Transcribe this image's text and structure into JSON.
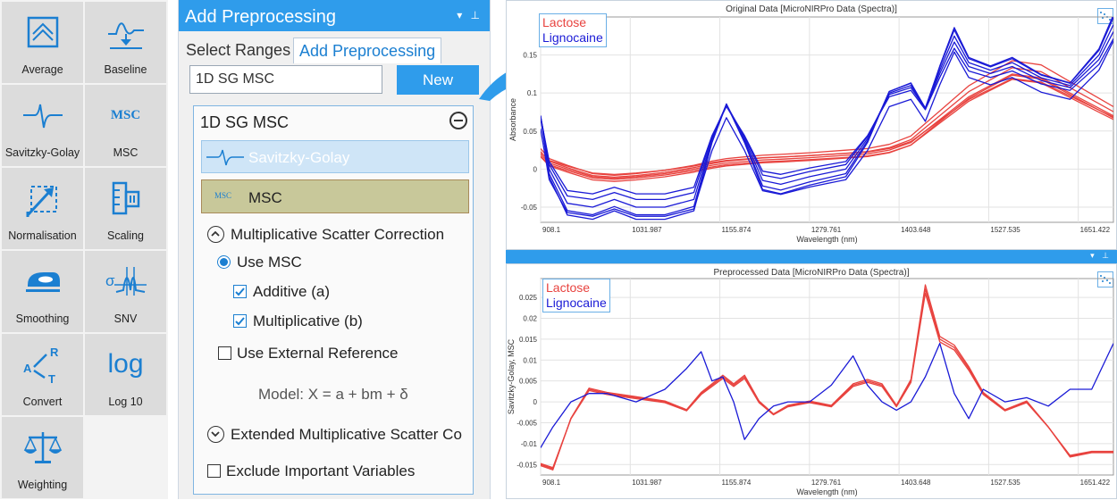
{
  "palette": {
    "items": [
      {
        "label": "Average",
        "icon": "average-icon"
      },
      {
        "label": "Baseline",
        "icon": "baseline-icon"
      },
      {
        "label": "Savitzky-Golay",
        "icon": "savitzky-golay-icon"
      },
      {
        "label": "MSC",
        "icon": "msc-icon"
      },
      {
        "label": "Normalisation",
        "icon": "normalisation-icon"
      },
      {
        "label": "Scaling",
        "icon": "scaling-icon"
      },
      {
        "label": "Smoothing",
        "icon": "smoothing-icon"
      },
      {
        "label": "SNV",
        "icon": "snv-icon"
      },
      {
        "label": "Convert",
        "icon": "convert-icon"
      },
      {
        "label": "Log 10",
        "icon": "log-icon"
      },
      {
        "label": "Weighting",
        "icon": "weighting-icon"
      }
    ],
    "msc_icon_text": "MSC",
    "log_icon_text": "log",
    "convert_letters": [
      "R",
      "A",
      "T"
    ],
    "snv_icon_text": "σ"
  },
  "panel": {
    "title": "Add Preprocessing",
    "tabs": {
      "select": "Select Ranges",
      "add": "Add Preprocessing"
    },
    "name_value": "1D SG MSC",
    "new_label": "New",
    "group_title": "1D SG MSC",
    "steps": {
      "sg": "Savitzky-Golay",
      "msc": "MSC",
      "msc_icon": "MSC"
    },
    "msc_section": "Multiplicative Scatter Correction",
    "use_msc": "Use MSC",
    "additive": "Additive (a)",
    "multiplicative": "Multiplicative (b)",
    "external_ref": "Use External Reference",
    "model": "Model: X = a + bm + δ",
    "emsc_section": "Extended Multiplicative Scatter Co",
    "exclude": "Exclude Important Variables",
    "state": {
      "use_msc": true,
      "additive": true,
      "multiplicative": true,
      "external_ref": false,
      "exclude": false
    }
  },
  "colors": {
    "accent": "#2f9ceb",
    "lactose": "#e8433f",
    "lignocaine": "#1a1ad6"
  },
  "chart_data": [
    {
      "type": "line",
      "title": "Original Data [MicroNIRPro Data (Spectra)]",
      "xlabel": "Wavelength (nm)",
      "ylabel": "Absorbance",
      "x_ticks": [
        "908.1",
        "1031.987",
        "1155.874",
        "1279.761",
        "1403.648",
        "1527.535",
        "1651.422"
      ],
      "y_ticks": [
        "-0.05",
        "0",
        "0.05",
        "0.1",
        "0.15"
      ],
      "xlim": [
        908.1,
        1700
      ],
      "ylim": [
        -0.07,
        0.2
      ],
      "grid": true,
      "legend": "top-left",
      "x": [
        908,
        920,
        945,
        980,
        1010,
        1040,
        1080,
        1120,
        1145,
        1165,
        1190,
        1215,
        1240,
        1280,
        1330,
        1360,
        1390,
        1420,
        1440,
        1460,
        1480,
        1500,
        1530,
        1560,
        1600,
        1640,
        1680,
        1700
      ],
      "series": [
        {
          "name": "Lactose",
          "values": [
            0.02,
            0.008,
            0.0,
            -0.01,
            -0.012,
            -0.01,
            -0.006,
            0.0,
            0.005,
            0.008,
            0.01,
            0.012,
            0.013,
            0.015,
            0.018,
            0.02,
            0.025,
            0.035,
            0.05,
            0.065,
            0.08,
            0.095,
            0.11,
            0.125,
            0.12,
            0.1,
            0.08,
            0.07
          ]
        },
        {
          "name": "Lignocaine",
          "values": [
            0.07,
            0.0,
            -0.045,
            -0.05,
            -0.04,
            -0.05,
            -0.05,
            -0.04,
            0.04,
            0.085,
            0.04,
            -0.015,
            -0.02,
            -0.01,
            0.0,
            0.04,
            0.1,
            0.11,
            0.08,
            0.13,
            0.175,
            0.14,
            0.13,
            0.14,
            0.12,
            0.11,
            0.15,
            0.19
          ]
        }
      ]
    },
    {
      "type": "line",
      "title": "Preprocessed Data [MicroNIRPro Data (Spectra)]",
      "xlabel": "Wavelength (nm)",
      "ylabel": "Savitzky-Golay, MSC",
      "x_ticks": [
        "908.1",
        "1031.987",
        "1155.874",
        "1279.761",
        "1403.648",
        "1527.535",
        "1651.422"
      ],
      "y_ticks": [
        "-0.015",
        "-0.01",
        "-0.005",
        "0",
        "0.005",
        "0.01",
        "0.015",
        "0.02",
        "0.025"
      ],
      "xlim": [
        908.1,
        1700
      ],
      "ylim": [
        -0.0175,
        0.0295
      ],
      "grid": true,
      "legend": "top-left",
      "x": [
        908,
        925,
        950,
        975,
        1000,
        1040,
        1080,
        1110,
        1130,
        1145,
        1160,
        1175,
        1190,
        1210,
        1230,
        1250,
        1280,
        1310,
        1340,
        1360,
        1380,
        1400,
        1420,
        1440,
        1460,
        1480,
        1500,
        1520,
        1550,
        1580,
        1610,
        1640,
        1670,
        1700
      ],
      "series": [
        {
          "name": "Lactose",
          "values": [
            -0.015,
            -0.016,
            -0.004,
            0.003,
            0.002,
            0.001,
            0.0,
            -0.002,
            0.002,
            0.004,
            0.006,
            0.004,
            0.006,
            0.0,
            -0.003,
            -0.001,
            0.0,
            -0.001,
            0.004,
            0.005,
            0.004,
            -0.001,
            0.005,
            0.027,
            0.015,
            0.013,
            0.008,
            0.002,
            -0.002,
            0.0,
            -0.006,
            -0.013,
            -0.012,
            -0.012
          ]
        },
        {
          "name": "Lignocaine",
          "values": [
            -0.011,
            -0.006,
            0.0,
            0.002,
            0.002,
            0.0,
            0.003,
            0.008,
            0.012,
            0.005,
            0.006,
            0.0,
            -0.009,
            -0.004,
            -0.001,
            0.0,
            0.0,
            0.004,
            0.011,
            0.004,
            0.0,
            -0.002,
            0.0,
            0.006,
            0.014,
            0.002,
            -0.004,
            0.003,
            0.0,
            0.001,
            -0.001,
            0.003,
            0.003,
            0.014
          ]
        }
      ]
    }
  ]
}
